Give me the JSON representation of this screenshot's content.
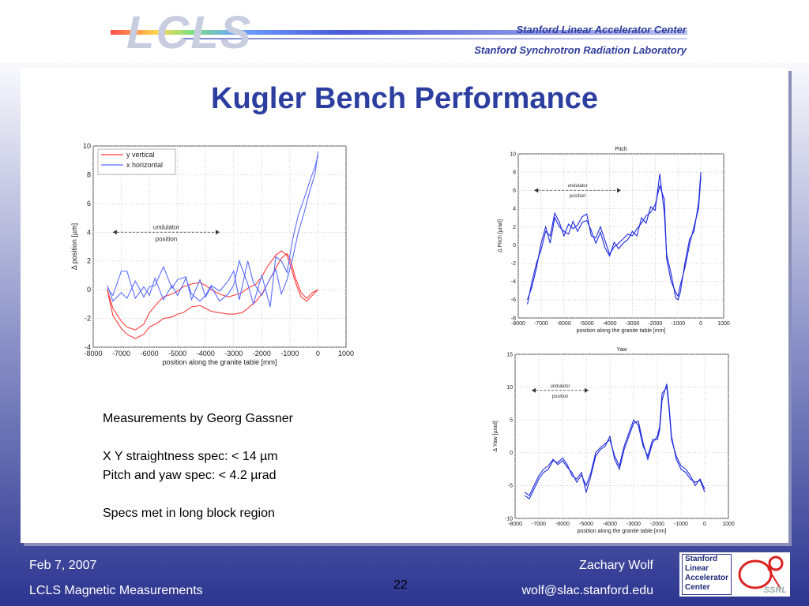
{
  "header": {
    "logo": "LCLS",
    "org1": "Stanford Linear Accelerator Center",
    "org2": "Stanford Synchrotron Radiation Laboratory"
  },
  "slide": {
    "title": "Kugler Bench Performance",
    "notes": [
      "Measurements by Georg Gassner",
      "",
      "X Y straightness spec: < 14 µm",
      "Pitch and yaw spec: < 4.2 µrad",
      "",
      "Specs met in long block region"
    ]
  },
  "footer": {
    "date": "Feb 7, 2007",
    "topic": "LCLS Magnetic Measurements",
    "page": "22",
    "author": "Zachary Wolf",
    "email": "wolf@slac.stanford.edu",
    "logo_lines": [
      "Stanford",
      "Linear",
      "Accelerator",
      "Center"
    ],
    "logo_ssrl": "SSRL"
  },
  "chart_data": [
    {
      "type": "line",
      "title": "",
      "xlabel": "position along the granite table [mm]",
      "ylabel": "Δ position [µm]",
      "xlim": [
        -8000,
        1000
      ],
      "ylim": [
        -4,
        10
      ],
      "xticks": [
        -8000,
        -7000,
        -6000,
        -5000,
        -4000,
        -3000,
        -2000,
        -1000,
        0,
        1000
      ],
      "yticks": [
        -4,
        -2,
        0,
        2,
        4,
        6,
        8,
        10
      ],
      "grid": true,
      "legend": "top-left",
      "annotation": [
        "undulator",
        "position"
      ],
      "annotation_span": [
        -7300,
        -3500
      ],
      "annotation_y": 4,
      "series": [
        {
          "name": "y vertical",
          "color": "#ff3b3b",
          "x": [
            -7500,
            -7300,
            -7000,
            -6800,
            -6500,
            -6200,
            -6000,
            -5700,
            -5500,
            -5200,
            -5000,
            -4800,
            -4500,
            -4200,
            -4000,
            -3800,
            -3500,
            -3200,
            -3000,
            -2700,
            -2500,
            -2200,
            -2000,
            -1800,
            -1500,
            -1300,
            -1100,
            -1000,
            -800,
            -600,
            -400,
            -200,
            0
          ],
          "y": [
            0,
            -1.8,
            -2.7,
            -3.1,
            -3.4,
            -3.1,
            -2.6,
            -2.3,
            -2.0,
            -1.9,
            -1.7,
            -1.6,
            -1.2,
            -1.1,
            -1.3,
            -1.5,
            -1.6,
            -1.7,
            -1.7,
            -1.6,
            -1.3,
            -0.8,
            -0.3,
            0.4,
            1.5,
            2.2,
            2.5,
            2.2,
            0.8,
            -0.2,
            -0.6,
            -0.2,
            0
          ]
        },
        {
          "name": "",
          "color": "#ff3b3b",
          "x": [
            -7500,
            -7300,
            -7000,
            -6800,
            -6500,
            -6200,
            -6000,
            -5700,
            -5500,
            -5200,
            -5000,
            -4800,
            -4500,
            -4200,
            -4000,
            -3800,
            -3500,
            -3200,
            -3000,
            -2700,
            -2500,
            -2200,
            -2000,
            -1800,
            -1500,
            -1300,
            -1100,
            -1000,
            -800,
            -600,
            -400,
            -200,
            0
          ],
          "y": [
            0,
            -1.3,
            -2.2,
            -2.6,
            -2.8,
            -2.4,
            -1.6,
            -0.9,
            -0.5,
            -0.3,
            -0.1,
            0.2,
            0.4,
            0.5,
            0.3,
            0.0,
            -0.3,
            -0.5,
            -0.4,
            -0.2,
            0.1,
            0.4,
            0.9,
            1.6,
            2.4,
            2.7,
            2.4,
            1.8,
            0.5,
            -0.5,
            -0.8,
            -0.4,
            0
          ]
        },
        {
          "name": "x horizontal",
          "color": "#5b6cff",
          "x": [
            -7500,
            -7300,
            -7000,
            -6800,
            -6500,
            -6200,
            -6000,
            -5800,
            -5500,
            -5200,
            -5000,
            -4700,
            -4500,
            -4200,
            -4000,
            -3800,
            -3500,
            -3200,
            -3000,
            -2800,
            -2500,
            -2300,
            -2000,
            -1700,
            -1500,
            -1300,
            -1100,
            -900,
            -700,
            -500,
            -300,
            -100,
            0
          ],
          "y": [
            0.3,
            -0.8,
            -0.2,
            -0.6,
            0.6,
            -0.5,
            0.2,
            0.3,
            1.6,
            0.1,
            0.7,
            0.9,
            -0.7,
            0.7,
            -0.5,
            0.2,
            -0.8,
            -0.3,
            0.3,
            2.0,
            0.4,
            -1.0,
            1.0,
            -1.2,
            2.3,
            2.0,
            1.2,
            3.5,
            5.2,
            6.3,
            7.5,
            8.6,
            9.3
          ]
        },
        {
          "name": "",
          "color": "#5b6cff",
          "x": [
            -7500,
            -7300,
            -7000,
            -6800,
            -6500,
            -6200,
            -6000,
            -5800,
            -5500,
            -5200,
            -5000,
            -4700,
            -4500,
            -4200,
            -4000,
            -3800,
            -3500,
            -3200,
            -3000,
            -2800,
            -2500,
            -2300,
            -2000,
            -1700,
            -1500,
            -1300,
            -1100,
            -900,
            -700,
            -500,
            -300,
            -100,
            0
          ],
          "y": [
            0.1,
            -0.4,
            1.3,
            1.3,
            -0.6,
            0.2,
            -0.4,
            0.8,
            -0.7,
            0.3,
            -0.4,
            0.8,
            -0.3,
            -0.8,
            -0.4,
            0.3,
            -0.1,
            0.6,
            1.3,
            -0.7,
            2.0,
            0.5,
            -0.4,
            0.8,
            1.4,
            -0.3,
            0.7,
            2.2,
            4.0,
            5.3,
            6.8,
            8.1,
            9.6
          ]
        }
      ]
    },
    {
      "type": "line",
      "title": "Pitch",
      "xlabel": "position along the granite table [mm]",
      "ylabel": "Δ Pitch [µrad]",
      "xlim": [
        -8000,
        1000
      ],
      "ylim": [
        -8,
        10
      ],
      "xticks": [
        -8000,
        -7000,
        -6000,
        -5000,
        -4000,
        -3000,
        -2000,
        -1000,
        0,
        1000
      ],
      "yticks": [
        -8,
        -6,
        -4,
        -2,
        0,
        2,
        4,
        6,
        8,
        10
      ],
      "grid": true,
      "annotation": [
        "undulator",
        "position"
      ],
      "annotation_span": [
        -7300,
        -3500
      ],
      "annotation_y": 6,
      "series": [
        {
          "name": "",
          "color": "#1f2bdc",
          "x": [
            -7600,
            -7400,
            -7200,
            -7000,
            -6800,
            -6600,
            -6400,
            -6200,
            -6000,
            -5800,
            -5600,
            -5400,
            -5200,
            -5000,
            -4800,
            -4600,
            -4400,
            -4200,
            -4000,
            -3800,
            -3600,
            -3400,
            -3200,
            -3000,
            -2800,
            -2600,
            -2400,
            -2200,
            -2000,
            -1800,
            -1600,
            -1500,
            -1300,
            -1100,
            -1000,
            -900,
            -700,
            -500,
            -300,
            -100,
            0
          ],
          "y": [
            -6.5,
            -4.0,
            -2.0,
            -0.5,
            1.5,
            1.0,
            3.5,
            2.5,
            1.0,
            2.3,
            1.8,
            2.2,
            3.1,
            3.4,
            1.0,
            0.8,
            2.0,
            0.5,
            -1.0,
            -0.2,
            0.2,
            0.7,
            1.2,
            1.0,
            1.8,
            2.4,
            3.2,
            3.6,
            4.4,
            6.5,
            5.0,
            -1.5,
            -4.0,
            -5.2,
            -5.6,
            -4.4,
            -2.5,
            0,
            2.0,
            4.0,
            7.5
          ]
        },
        {
          "name": "",
          "color": "#1f2bdc",
          "x": [
            -7600,
            -7400,
            -7200,
            -7000,
            -6800,
            -6600,
            -6400,
            -6200,
            -6000,
            -5800,
            -5600,
            -5400,
            -5200,
            -5000,
            -4800,
            -4600,
            -4400,
            -4200,
            -4000,
            -3800,
            -3600,
            -3400,
            -3200,
            -3000,
            -2800,
            -2600,
            -2400,
            -2200,
            -2000,
            -1800,
            -1600,
            -1500,
            -1300,
            -1100,
            -1000,
            -900,
            -700,
            -500,
            -300,
            -100,
            0
          ],
          "y": [
            -6.0,
            -4.6,
            -2.5,
            0.2,
            2.0,
            0.2,
            3.0,
            2.0,
            1.5,
            1.2,
            2.6,
            1.5,
            2.5,
            2.7,
            1.6,
            0.2,
            1.4,
            -0.3,
            -1.2,
            0.3,
            -0.4,
            0.2,
            0.6,
            1.5,
            1.0,
            3.0,
            2.4,
            4.2,
            3.8,
            7.8,
            3.5,
            -1.0,
            -3.2,
            -5.8,
            -6.0,
            -5.2,
            -2.0,
            0.6,
            1.5,
            4.6,
            8.0
          ]
        }
      ]
    },
    {
      "type": "line",
      "title": "Yaw",
      "xlabel": "position along the granite table [mm]",
      "ylabel": "Δ Yaw [µrad]",
      "xlim": [
        -8000,
        1000
      ],
      "ylim": [
        -10,
        15
      ],
      "xticks": [
        -8000,
        -7000,
        -6000,
        -5000,
        -4000,
        -3000,
        -2000,
        -1000,
        0,
        1000
      ],
      "yticks": [
        -10,
        -5,
        0,
        5,
        10,
        15
      ],
      "grid": true,
      "annotation": [
        "undulator",
        "position"
      ],
      "annotation_span": [
        -7300,
        -4900
      ],
      "annotation_y": 9.5,
      "series": [
        {
          "name": "",
          "color": "#1f2bdc",
          "x": [
            -7600,
            -7400,
            -7200,
            -7000,
            -6800,
            -6600,
            -6400,
            -6200,
            -6000,
            -5800,
            -5600,
            -5400,
            -5200,
            -5000,
            -4800,
            -4600,
            -4400,
            -4200,
            -4000,
            -3800,
            -3600,
            -3400,
            -3200,
            -3000,
            -2800,
            -2600,
            -2400,
            -2200,
            -2000,
            -1900,
            -1800,
            -1600,
            -1500,
            -1400,
            -1200,
            -1000,
            -800,
            -600,
            -400,
            -200,
            0
          ],
          "y": [
            -6.5,
            -7.0,
            -5.5,
            -4.0,
            -3.0,
            -2.5,
            -1.2,
            -1.5,
            -0.8,
            -1.8,
            -3.5,
            -4.0,
            -3.0,
            -6.0,
            -3.5,
            -0.5,
            0.5,
            1.0,
            2.5,
            -1.0,
            -2.5,
            0.5,
            2.5,
            4.5,
            4.8,
            1.5,
            -1.0,
            1.5,
            2.5,
            4.0,
            9.0,
            10.0,
            6.5,
            2.0,
            -0.5,
            -2.0,
            -2.5,
            -3.5,
            -5.0,
            -4.0,
            -5.5
          ]
        },
        {
          "name": "",
          "color": "#1f2bdc",
          "x": [
            -7600,
            -7400,
            -7200,
            -7000,
            -6800,
            -6600,
            -6400,
            -6200,
            -6000,
            -5800,
            -5600,
            -5400,
            -5200,
            -5000,
            -4800,
            -4600,
            -4400,
            -4200,
            -4000,
            -3800,
            -3600,
            -3400,
            -3200,
            -3000,
            -2800,
            -2600,
            -2400,
            -2200,
            -2000,
            -1900,
            -1800,
            -1600,
            -1500,
            -1400,
            -1200,
            -1000,
            -800,
            -600,
            -400,
            -200,
            0
          ],
          "y": [
            -6.0,
            -6.5,
            -5.0,
            -3.5,
            -2.5,
            -2.0,
            -1.0,
            -1.8,
            -1.2,
            -2.2,
            -3.0,
            -4.5,
            -3.4,
            -5.0,
            -3.0,
            0,
            0.8,
            1.4,
            2.0,
            -0.5,
            -2.0,
            1.0,
            3.0,
            5.0,
            4.2,
            1.0,
            -0.5,
            2.0,
            2.0,
            3.5,
            8.0,
            10.5,
            7.0,
            2.5,
            -1.0,
            -2.5,
            -3.0,
            -4.0,
            -4.5,
            -4.2,
            -6.0
          ]
        }
      ]
    }
  ]
}
